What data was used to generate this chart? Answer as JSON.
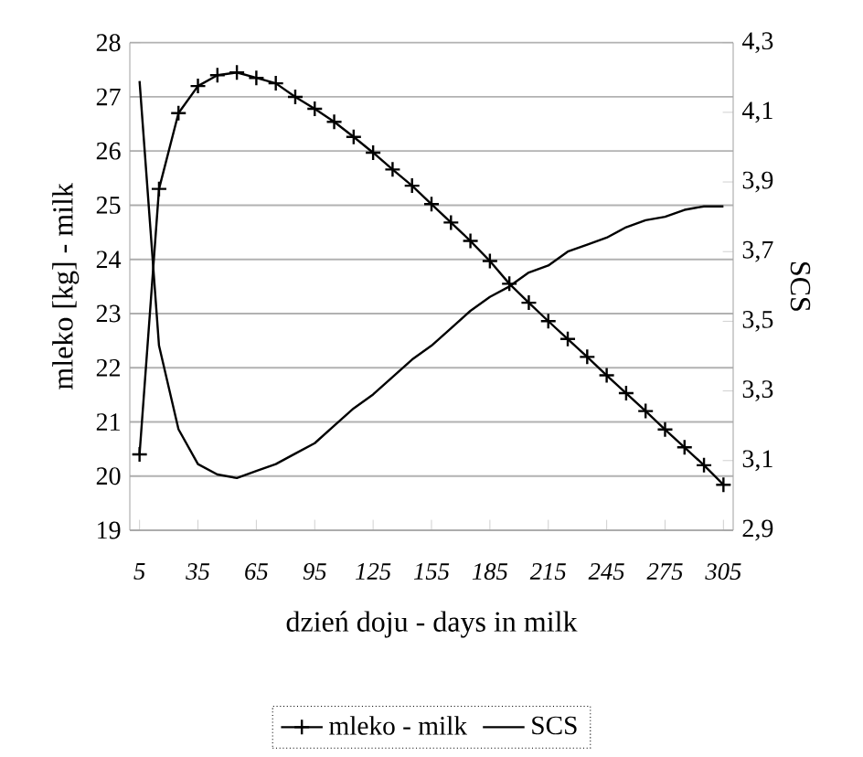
{
  "chart_data": {
    "type": "line",
    "xlabel": "dzień doju - days in milk",
    "ylabel": "mleko [kg] - milk",
    "y2label": "SCS",
    "x": [
      5,
      15,
      25,
      35,
      45,
      55,
      65,
      75,
      85,
      95,
      105,
      115,
      125,
      135,
      145,
      155,
      165,
      175,
      185,
      195,
      205,
      215,
      225,
      235,
      245,
      255,
      265,
      275,
      285,
      295,
      305
    ],
    "xlim": [
      0,
      310
    ],
    "xticks": [
      5,
      35,
      65,
      95,
      125,
      155,
      185,
      215,
      245,
      275,
      305
    ],
    "ylim": [
      19,
      28
    ],
    "yticks": [
      19,
      20,
      21,
      22,
      23,
      24,
      25,
      26,
      27,
      28
    ],
    "y2lim": [
      2.9,
      4.3
    ],
    "y2ticks": [
      {
        "value": 2.9,
        "label": "2,9"
      },
      {
        "value": 3.1,
        "label": "3,1"
      },
      {
        "value": 3.3,
        "label": "3,3"
      },
      {
        "value": 3.5,
        "label": "3,5"
      },
      {
        "value": 3.7,
        "label": "3,7"
      },
      {
        "value": 3.9,
        "label": "3,9"
      },
      {
        "value": 4.1,
        "label": "4,1"
      },
      {
        "value": 4.3,
        "label": "4,3"
      }
    ],
    "grid": "y",
    "legend": "bottom",
    "line_style": "solid",
    "series": [
      {
        "name": "mleko - milk",
        "color": "#000000",
        "marker": "cross",
        "values": [
          20.4,
          25.3,
          26.7,
          27.2,
          27.4,
          27.45,
          27.35,
          27.25,
          27.0,
          26.78,
          26.54,
          26.26,
          25.97,
          25.66,
          25.36,
          25.02,
          24.68,
          24.34,
          23.97,
          23.55,
          23.2,
          22.86,
          22.53,
          22.2,
          21.86,
          21.53,
          21.2,
          20.86,
          20.53,
          20.2,
          19.84
        ]
      },
      {
        "name": "SCS",
        "color": "#000000",
        "marker": "none",
        "axis": "y2",
        "values": [
          4.19,
          3.43,
          3.19,
          3.09,
          3.06,
          3.05,
          3.07,
          3.09,
          3.12,
          3.15,
          3.2,
          3.25,
          3.29,
          3.34,
          3.39,
          3.43,
          3.48,
          3.53,
          3.57,
          3.6,
          3.64,
          3.66,
          3.7,
          3.72,
          3.74,
          3.77,
          3.79,
          3.8,
          3.82,
          3.83,
          3.83
        ]
      }
    ]
  }
}
